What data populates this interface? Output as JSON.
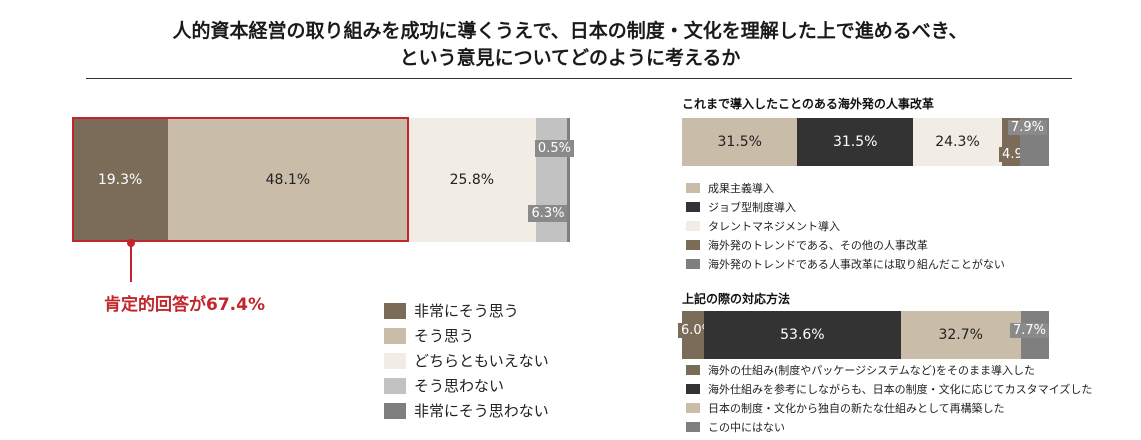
{
  "title_line1": "人的資本経営の取り組みを成功に導くうえで、日本の制度・文化を理解した上で進めるべき、",
  "title_line2": "という意見についてどのように考えるか",
  "colors": {
    "c1": "#7b6b59",
    "c2": "#c9bca8",
    "c3": "#f1ece4",
    "c4": "#c2c2c2",
    "c5": "#7f7f7f",
    "dark": "#333333",
    "accent": "#c0262b"
  },
  "chart_data": [
    {
      "type": "bar",
      "orientation": "horizontal-stacked",
      "title": "",
      "series": [
        {
          "name": "非常にそう思う",
          "value": 19.3,
          "label": "19.3%"
        },
        {
          "name": "そう思う",
          "value": 48.1,
          "label": "48.1%"
        },
        {
          "name": "どちらともいえない",
          "value": 25.8,
          "label": "25.8%"
        },
        {
          "name": "そう思わない",
          "value": 6.3,
          "label": "6.3%"
        },
        {
          "name": "非常にそう思わない",
          "value": 0.5,
          "label": "0.5%"
        }
      ],
      "annotation": "肯定的回答が67.4%",
      "legend_position": "bottom-right"
    },
    {
      "type": "bar",
      "orientation": "horizontal-stacked",
      "title": "これまで導入したことのある海外発の人事改革",
      "series": [
        {
          "name": "成果主義導入",
          "value": 31.5,
          "label": "31.5%"
        },
        {
          "name": "ジョブ型制度導入",
          "value": 31.5,
          "label": "31.5%"
        },
        {
          "name": "タレントマネジメント導入",
          "value": 24.3,
          "label": "24.3%"
        },
        {
          "name": "海外発のトレンドである、その他の人事改革",
          "value": 4.9,
          "label": "4.9%"
        },
        {
          "name": "海外発のトレンドである人事改革には取り組んだことがない",
          "value": 7.9,
          "label": "7.9%"
        }
      ],
      "legend_position": "bottom"
    },
    {
      "type": "bar",
      "orientation": "horizontal-stacked",
      "title": "上記の際の対応方法",
      "series": [
        {
          "name": "海外の仕組み(制度やパッケージシステムなど)をそのまま導入した",
          "value": 6.0,
          "label": "6.0%"
        },
        {
          "name": "海外仕組みを参考にしながらも、日本の制度・文化に応じてカスタマイズした",
          "value": 53.6,
          "label": "53.6%"
        },
        {
          "name": "日本の制度・文化から独自の新たな仕組みとして再構築した",
          "value": 32.7,
          "label": "32.7%"
        },
        {
          "name": "この中にはない",
          "value": 7.7,
          "label": "7.7%"
        }
      ],
      "legend_position": "bottom"
    }
  ]
}
